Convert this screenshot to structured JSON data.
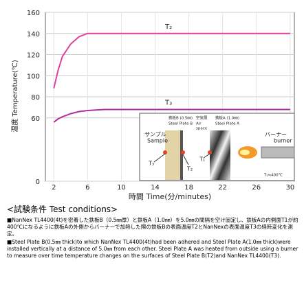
{
  "chart_data": {
    "type": "line",
    "x_label": "時間 Time(分/minutes)",
    "y_label": "温度 Temperature(℃)",
    "xlim": [
      1,
      30.5
    ],
    "xticks": [
      2,
      6,
      10,
      14,
      18,
      22,
      26,
      30
    ],
    "ylim": [
      0,
      160
    ],
    "yticks": [
      0,
      60,
      80,
      100,
      120,
      140,
      160
    ],
    "grid": true,
    "series": [
      {
        "name": "T₂",
        "color": "#e0409c",
        "x": [
          2,
          2.5,
          3,
          4,
          5,
          6,
          8,
          30
        ],
        "values": [
          88,
          105,
          118,
          130,
          137,
          140,
          140,
          140
        ]
      },
      {
        "name": "T₃",
        "color": "#b0309c",
        "x": [
          2,
          2.5,
          3,
          4,
          5,
          6,
          8,
          30
        ],
        "values": [
          56,
          59,
          61,
          64,
          66,
          67,
          68,
          68
        ]
      }
    ],
    "inset_labels": [
      "鉄板B (0.5㎜)",
      "Steel Plate B",
      "空気層",
      "Air",
      "space",
      "鉄板A (1.0㎜)",
      "Steel Plate A",
      "サンプル",
      "Sample",
      "T₃",
      "T₂",
      "T₁",
      "バーナー",
      "burner",
      "T₁≒400℃"
    ]
  },
  "conditions": {
    "title": "<試験条件 Test conditions>",
    "items": [
      "NanNex TL4400(4t)を密着した鉄板B（0.5㎜厚）と鉄板A（1.0㎜）を5.0㎜の間隔を空け固定し、鉄板Aの内側面T1が約400℃になるように鉄板Aの外側からバーナーで加熱した際の鉄板Bの表面温度T2とNanNexの表面温度T3の経時変化を測定。",
      "Steel Plate B(0.5㎜ thick)to which NanNex TL4400(4t)had been adhered and Steel Plate A(1.0㎜ thick)were installed vertically at a distance of 5.0㎜ from each other. Steel Plate A was heated from outside using a burner to measure over time temperature changes on the surfaces of Steel Plate B(T2)and NanNex TL4400(T3)."
    ]
  }
}
